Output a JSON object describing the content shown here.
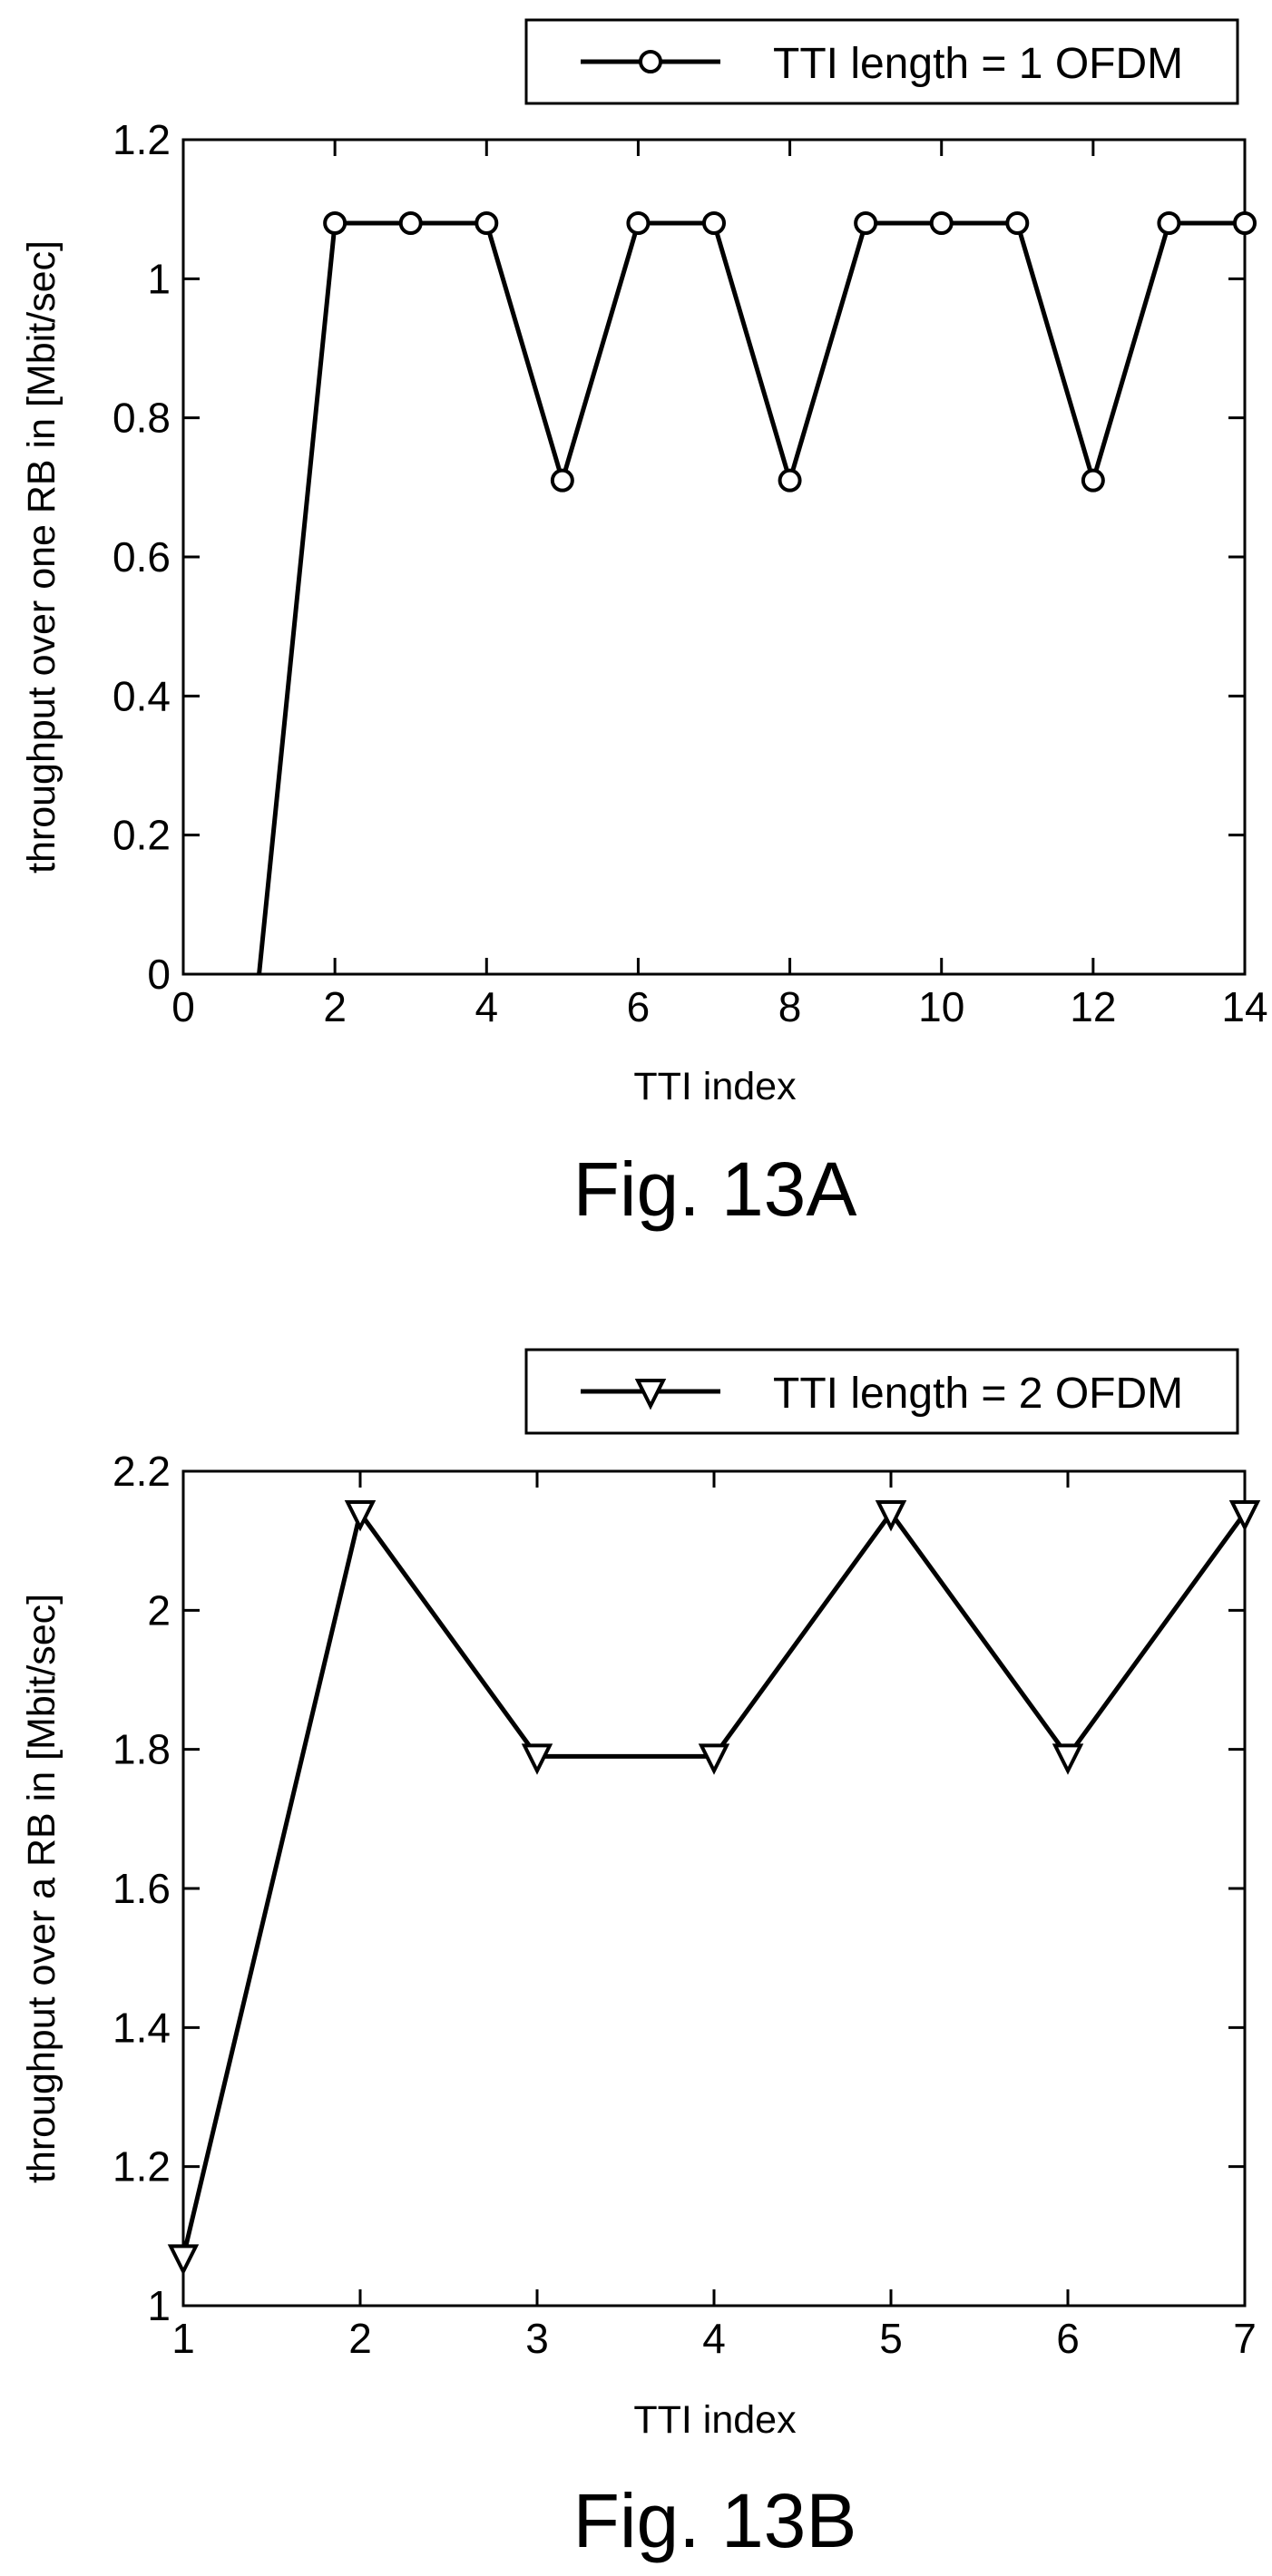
{
  "chart_data": [
    {
      "type": "line",
      "caption": "Fig. 13A",
      "xlabel": "TTI index",
      "ylabel": "throughput over one RB in [Mbit/sec]",
      "xlim": [
        0,
        14
      ],
      "ylim": [
        0,
        1.2
      ],
      "xticks": [
        "0",
        "2",
        "4",
        "6",
        "8",
        "10",
        "12",
        "14"
      ],
      "yticks": [
        "0",
        "0.2",
        "0.4",
        "0.6",
        "0.8",
        "1",
        "1.2"
      ],
      "grid": false,
      "legend_position": "top-right, above plot",
      "series": [
        {
          "name": "TTI length = 1 OFDM",
          "marker": "circle",
          "x": [
            1,
            2,
            3,
            4,
            5,
            6,
            7,
            8,
            9,
            10,
            11,
            12,
            13,
            14
          ],
          "y": [
            0,
            1.08,
            1.08,
            1.08,
            0.71,
            1.08,
            1.08,
            0.71,
            1.08,
            1.08,
            1.08,
            0.71,
            1.08,
            1.08
          ],
          "markers_from_index": 1
        }
      ]
    },
    {
      "type": "line",
      "caption": "Fig. 13B",
      "xlabel": "TTI index",
      "ylabel": "throughput over a RB in [Mbit/sec]",
      "xlim": [
        1,
        7
      ],
      "ylim": [
        1,
        2.2
      ],
      "xticks": [
        "1",
        "2",
        "3",
        "4",
        "5",
        "6",
        "7"
      ],
      "yticks": [
        "1",
        "1.2",
        "1.4",
        "1.6",
        "1.8",
        "2",
        "2.2"
      ],
      "grid": false,
      "legend_position": "top-right, above plot",
      "series": [
        {
          "name": "TTI length = 2 OFDM",
          "marker": "triangle-down",
          "x": [
            1,
            2,
            3,
            4,
            5,
            6,
            7
          ],
          "y": [
            1.07,
            2.14,
            1.79,
            1.79,
            2.14,
            1.79,
            2.14
          ],
          "markers_from_index": 0
        }
      ]
    }
  ]
}
